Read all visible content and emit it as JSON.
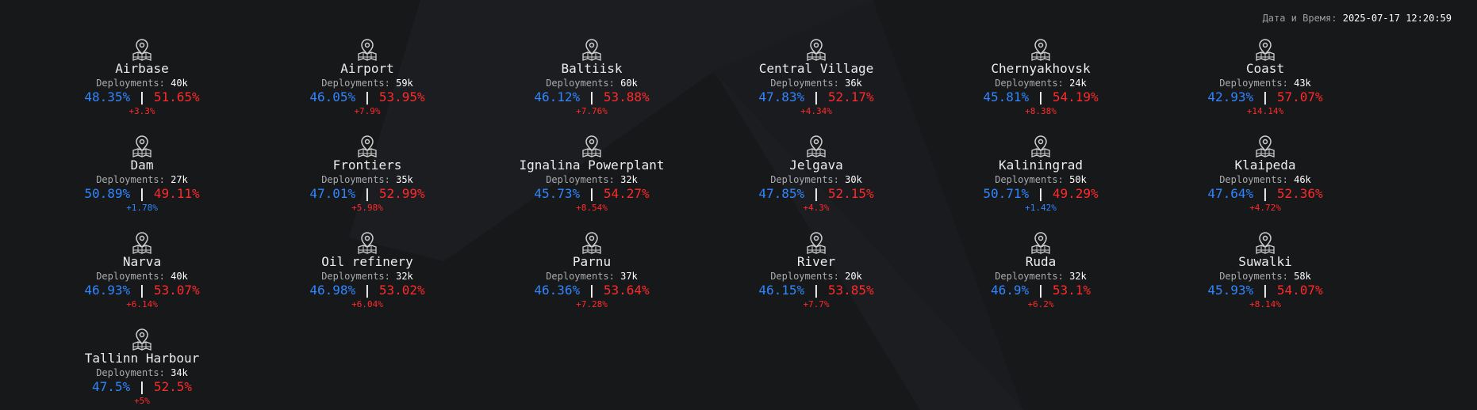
{
  "header": {
    "datetime_label": "Дата и Время:",
    "datetime_value": "2025-07-17 12:20:59"
  },
  "labels": {
    "deployments": "Deployments:",
    "separator": "|"
  },
  "colors": {
    "background": "#17181a",
    "blue": "#2f86ff",
    "red": "#ff2a2a"
  },
  "maps": [
    {
      "name": "Airbase",
      "deployments": "40k",
      "blue": "48.35%",
      "red": "51.65%",
      "delta": "+3.3%",
      "delta_color": "red",
      "icon": "map-pin-icon"
    },
    {
      "name": "Airport",
      "deployments": "59k",
      "blue": "46.05%",
      "red": "53.95%",
      "delta": "+7.9%",
      "delta_color": "red",
      "icon": "map-pin-icon"
    },
    {
      "name": "Baltiisk",
      "deployments": "60k",
      "blue": "46.12%",
      "red": "53.88%",
      "delta": "+7.76%",
      "delta_color": "red",
      "icon": "map-pin-icon"
    },
    {
      "name": "Central Village",
      "deployments": "36k",
      "blue": "47.83%",
      "red": "52.17%",
      "delta": "+4.34%",
      "delta_color": "red",
      "icon": "map-pin-icon"
    },
    {
      "name": "Chernyakhovsk",
      "deployments": "24k",
      "blue": "45.81%",
      "red": "54.19%",
      "delta": "+8.38%",
      "delta_color": "red",
      "icon": "map-pin-icon"
    },
    {
      "name": "Coast",
      "deployments": "43k",
      "blue": "42.93%",
      "red": "57.07%",
      "delta": "+14.14%",
      "delta_color": "red",
      "icon": "map-pin-icon"
    },
    {
      "name": "Dam",
      "deployments": "27k",
      "blue": "50.89%",
      "red": "49.11%",
      "delta": "+1.78%",
      "delta_color": "blue",
      "icon": "map-pin-icon"
    },
    {
      "name": "Frontiers",
      "deployments": "35k",
      "blue": "47.01%",
      "red": "52.99%",
      "delta": "+5.98%",
      "delta_color": "red",
      "icon": "map-pin-icon"
    },
    {
      "name": "Ignalina Powerplant",
      "deployments": "32k",
      "blue": "45.73%",
      "red": "54.27%",
      "delta": "+8.54%",
      "delta_color": "red",
      "icon": "map-pin-icon"
    },
    {
      "name": "Jelgava",
      "deployments": "30k",
      "blue": "47.85%",
      "red": "52.15%",
      "delta": "+4.3%",
      "delta_color": "red",
      "icon": "map-pin-icon"
    },
    {
      "name": "Kaliningrad",
      "deployments": "50k",
      "blue": "50.71%",
      "red": "49.29%",
      "delta": "+1.42%",
      "delta_color": "blue",
      "icon": "map-pin-icon"
    },
    {
      "name": "Klaipeda",
      "deployments": "46k",
      "blue": "47.64%",
      "red": "52.36%",
      "delta": "+4.72%",
      "delta_color": "red",
      "icon": "map-pin-icon"
    },
    {
      "name": "Narva",
      "deployments": "40k",
      "blue": "46.93%",
      "red": "53.07%",
      "delta": "+6.14%",
      "delta_color": "red",
      "icon": "map-pin-icon"
    },
    {
      "name": "Oil refinery",
      "deployments": "32k",
      "blue": "46.98%",
      "red": "53.02%",
      "delta": "+6.04%",
      "delta_color": "red",
      "icon": "map-pin-icon"
    },
    {
      "name": "Parnu",
      "deployments": "37k",
      "blue": "46.36%",
      "red": "53.64%",
      "delta": "+7.28%",
      "delta_color": "red",
      "icon": "map-pin-icon"
    },
    {
      "name": "River",
      "deployments": "20k",
      "blue": "46.15%",
      "red": "53.85%",
      "delta": "+7.7%",
      "delta_color": "red",
      "icon": "map-pin-icon"
    },
    {
      "name": "Ruda",
      "deployments": "32k",
      "blue": "46.9%",
      "red": "53.1%",
      "delta": "+6.2%",
      "delta_color": "red",
      "icon": "map-pin-icon"
    },
    {
      "name": "Suwalki",
      "deployments": "58k",
      "blue": "45.93%",
      "red": "54.07%",
      "delta": "+8.14%",
      "delta_color": "red",
      "icon": "map-pin-icon"
    },
    {
      "name": "Tallinn Harbour",
      "deployments": "34k",
      "blue": "47.5%",
      "red": "52.5%",
      "delta": "+5%",
      "delta_color": "red",
      "icon": "map-pin-icon"
    }
  ]
}
